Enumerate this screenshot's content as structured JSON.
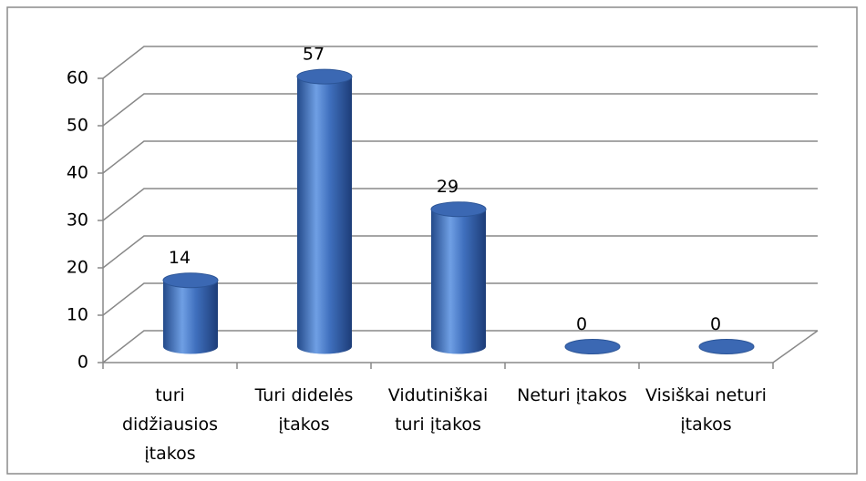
{
  "chart_data": {
    "type": "bar",
    "categories": [
      "turi didžiausios įtakos",
      "Turi didelės įtakos",
      "Vidutiniškai turi įtakos",
      "Neturi įtakos",
      "Visiškai neturi įtakos"
    ],
    "values": [
      14,
      57,
      29,
      0,
      0
    ],
    "color": "#4577c4",
    "ylim": [
      0,
      60
    ],
    "yticks": [
      0,
      10,
      20,
      30,
      40,
      50,
      60
    ],
    "grid": true
  }
}
